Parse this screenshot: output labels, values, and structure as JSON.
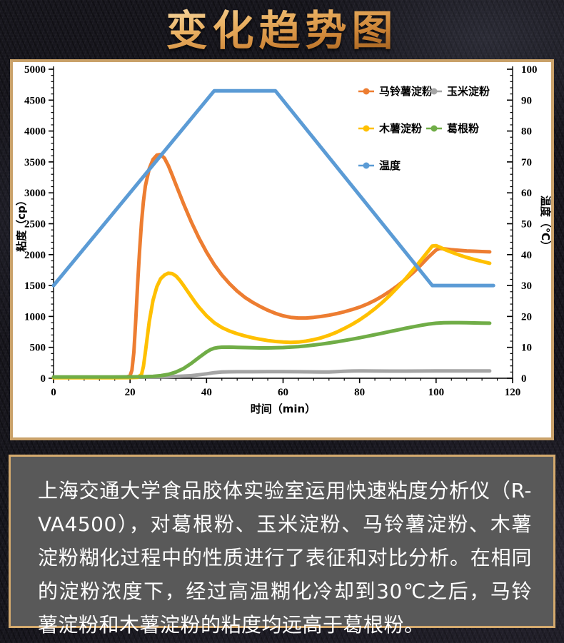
{
  "page": {
    "title_banner": "变化趋势图"
  },
  "chart_data": {
    "type": "line",
    "xlabel": "时间（min）",
    "ylabel_left": "粘度（cp）",
    "ylabel_right": "温度（℃）",
    "xlim": [
      0,
      120
    ],
    "xticks": [
      0,
      20,
      40,
      60,
      80,
      100,
      120
    ],
    "x_minor_step": 4,
    "ylim_left": [
      0,
      5000
    ],
    "yticks_left": [
      0,
      500,
      1000,
      1500,
      2000,
      2500,
      3000,
      3500,
      4000,
      4500,
      5000
    ],
    "y_left_minor_step": 100,
    "ylim_right": [
      0,
      100
    ],
    "yticks_right": [
      0,
      10,
      20,
      30,
      40,
      50,
      60,
      70,
      80,
      90,
      100
    ],
    "y_right_minor_step": 2,
    "grid": "off",
    "legend_position": "top-right-inside",
    "series": [
      {
        "name": "马铃薯淀粉",
        "color": "#ED7D31",
        "axis": "left",
        "points": [
          [
            0,
            12
          ],
          [
            5,
            12
          ],
          [
            10,
            12
          ],
          [
            15,
            12
          ],
          [
            19,
            15
          ],
          [
            20,
            40
          ],
          [
            20.5,
            130
          ],
          [
            21,
            420
          ],
          [
            21.5,
            950
          ],
          [
            22,
            1550
          ],
          [
            22.5,
            2080
          ],
          [
            23,
            2520
          ],
          [
            23.5,
            2860
          ],
          [
            24,
            3110
          ],
          [
            25,
            3390
          ],
          [
            26,
            3540
          ],
          [
            27,
            3610
          ],
          [
            28,
            3620
          ],
          [
            29,
            3560
          ],
          [
            30,
            3440
          ],
          [
            31,
            3290
          ],
          [
            32,
            3130
          ],
          [
            34,
            2820
          ],
          [
            36,
            2530
          ],
          [
            38,
            2270
          ],
          [
            40,
            2040
          ],
          [
            42,
            1840
          ],
          [
            44,
            1670
          ],
          [
            46,
            1530
          ],
          [
            48,
            1410
          ],
          [
            50,
            1310
          ],
          [
            52,
            1230
          ],
          [
            54,
            1160
          ],
          [
            56,
            1100
          ],
          [
            58,
            1050
          ],
          [
            60,
            1010
          ],
          [
            62,
            985
          ],
          [
            64,
            975
          ],
          [
            66,
            975
          ],
          [
            68,
            985
          ],
          [
            70,
            1000
          ],
          [
            72,
            1020
          ],
          [
            74,
            1045
          ],
          [
            76,
            1075
          ],
          [
            78,
            1110
          ],
          [
            80,
            1150
          ],
          [
            82,
            1200
          ],
          [
            84,
            1260
          ],
          [
            86,
            1330
          ],
          [
            88,
            1410
          ],
          [
            90,
            1500
          ],
          [
            92,
            1600
          ],
          [
            94,
            1710
          ],
          [
            96,
            1830
          ],
          [
            98,
            1960
          ],
          [
            100,
            2075
          ],
          [
            101,
            2100
          ],
          [
            102,
            2095
          ],
          [
            104,
            2080
          ],
          [
            106,
            2070
          ],
          [
            108,
            2060
          ],
          [
            110,
            2055
          ],
          [
            112,
            2050
          ],
          [
            114,
            2045
          ]
        ]
      },
      {
        "name": "玉米淀粉",
        "color": "#A5A5A5",
        "axis": "left",
        "points": [
          [
            0,
            15
          ],
          [
            5,
            15
          ],
          [
            10,
            16
          ],
          [
            15,
            17
          ],
          [
            20,
            18
          ],
          [
            25,
            21
          ],
          [
            30,
            26
          ],
          [
            33,
            32
          ],
          [
            36,
            42
          ],
          [
            38,
            55
          ],
          [
            40,
            72
          ],
          [
            42,
            90
          ],
          [
            44,
            100
          ],
          [
            46,
            104
          ],
          [
            48,
            105
          ],
          [
            52,
            105
          ],
          [
            56,
            106
          ],
          [
            60,
            107
          ],
          [
            64,
            105
          ],
          [
            68,
            103
          ],
          [
            70,
            102
          ],
          [
            72,
            102
          ],
          [
            74,
            106
          ],
          [
            76,
            112
          ],
          [
            78,
            117
          ],
          [
            80,
            119
          ],
          [
            84,
            117
          ],
          [
            88,
            116
          ],
          [
            92,
            116
          ],
          [
            96,
            117
          ],
          [
            100,
            118
          ],
          [
            104,
            118
          ],
          [
            108,
            118
          ],
          [
            112,
            118
          ],
          [
            114,
            118
          ]
        ]
      },
      {
        "name": "木薯淀粉",
        "color": "#FFC000",
        "axis": "left",
        "points": [
          [
            0,
            8
          ],
          [
            5,
            8
          ],
          [
            10,
            8
          ],
          [
            15,
            8
          ],
          [
            20,
            10
          ],
          [
            22,
            15
          ],
          [
            23,
            60
          ],
          [
            23.5,
            190
          ],
          [
            24,
            420
          ],
          [
            25,
            910
          ],
          [
            26,
            1260
          ],
          [
            27,
            1480
          ],
          [
            28,
            1610
          ],
          [
            29,
            1670
          ],
          [
            30,
            1700
          ],
          [
            31,
            1693
          ],
          [
            32,
            1655
          ],
          [
            33,
            1585
          ],
          [
            34,
            1500
          ],
          [
            35,
            1410
          ],
          [
            36,
            1320
          ],
          [
            37,
            1230
          ],
          [
            38,
            1150
          ],
          [
            39,
            1080
          ],
          [
            40,
            1010
          ],
          [
            42,
            900
          ],
          [
            44,
            820
          ],
          [
            46,
            763
          ],
          [
            48,
            720
          ],
          [
            50,
            685
          ],
          [
            52,
            655
          ],
          [
            54,
            630
          ],
          [
            56,
            610
          ],
          [
            58,
            595
          ],
          [
            60,
            585
          ],
          [
            62,
            580
          ],
          [
            64,
            585
          ],
          [
            66,
            600
          ],
          [
            68,
            625
          ],
          [
            70,
            655
          ],
          [
            72,
            695
          ],
          [
            74,
            745
          ],
          [
            76,
            805
          ],
          [
            78,
            870
          ],
          [
            80,
            945
          ],
          [
            82,
            1030
          ],
          [
            84,
            1125
          ],
          [
            86,
            1230
          ],
          [
            88,
            1345
          ],
          [
            90,
            1475
          ],
          [
            92,
            1610
          ],
          [
            94,
            1755
          ],
          [
            96,
            1905
          ],
          [
            98,
            2060
          ],
          [
            99,
            2140
          ],
          [
            100,
            2145
          ],
          [
            101,
            2120
          ],
          [
            102,
            2090
          ],
          [
            104,
            2040
          ],
          [
            106,
            1995
          ],
          [
            108,
            1955
          ],
          [
            110,
            1920
          ],
          [
            112,
            1890
          ],
          [
            114,
            1860
          ]
        ]
      },
      {
        "name": "葛根粉",
        "color": "#70AD47",
        "axis": "left",
        "points": [
          [
            0,
            20
          ],
          [
            5,
            20
          ],
          [
            10,
            20
          ],
          [
            15,
            20
          ],
          [
            20,
            22
          ],
          [
            24,
            25
          ],
          [
            26,
            30
          ],
          [
            28,
            42
          ],
          [
            30,
            62
          ],
          [
            32,
            100
          ],
          [
            34,
            158
          ],
          [
            36,
            240
          ],
          [
            38,
            335
          ],
          [
            40,
            425
          ],
          [
            41,
            462
          ],
          [
            42,
            485
          ],
          [
            43,
            497
          ],
          [
            44,
            502
          ],
          [
            46,
            503
          ],
          [
            48,
            500
          ],
          [
            50,
            497
          ],
          [
            52,
            493
          ],
          [
            54,
            491
          ],
          [
            56,
            491
          ],
          [
            58,
            493
          ],
          [
            60,
            497
          ],
          [
            62,
            503
          ],
          [
            64,
            512
          ],
          [
            66,
            523
          ],
          [
            68,
            537
          ],
          [
            70,
            552
          ],
          [
            72,
            570
          ],
          [
            74,
            589
          ],
          [
            76,
            610
          ],
          [
            78,
            632
          ],
          [
            80,
            655
          ],
          [
            82,
            679
          ],
          [
            84,
            704
          ],
          [
            86,
            730
          ],
          [
            88,
            756
          ],
          [
            90,
            782
          ],
          [
            92,
            808
          ],
          [
            94,
            833
          ],
          [
            96,
            856
          ],
          [
            98,
            876
          ],
          [
            100,
            890
          ],
          [
            102,
            898
          ],
          [
            104,
            900
          ],
          [
            106,
            899
          ],
          [
            108,
            897
          ],
          [
            110,
            895
          ],
          [
            112,
            892
          ],
          [
            114,
            890
          ]
        ]
      },
      {
        "name": "温度",
        "color": "#5B9BD5",
        "axis": "right",
        "points": [
          [
            0,
            30
          ],
          [
            42,
            93
          ],
          [
            58,
            93
          ],
          [
            99,
            30
          ],
          [
            115,
            30
          ]
        ]
      }
    ]
  },
  "description": {
    "text": "上海交通大学食品胶体实验室运用快速粘度分析仪（R-VA4500），对葛根粉、玉米淀粉、马铃薯淀粉、木薯淀粉糊化过程中的性质进行了表征和对比分析。在相同的淀粉浓度下，经过高温糊化冷却到30℃之后，马铃薯淀粉和木薯淀粉的粘度均远高于葛根粉。"
  }
}
